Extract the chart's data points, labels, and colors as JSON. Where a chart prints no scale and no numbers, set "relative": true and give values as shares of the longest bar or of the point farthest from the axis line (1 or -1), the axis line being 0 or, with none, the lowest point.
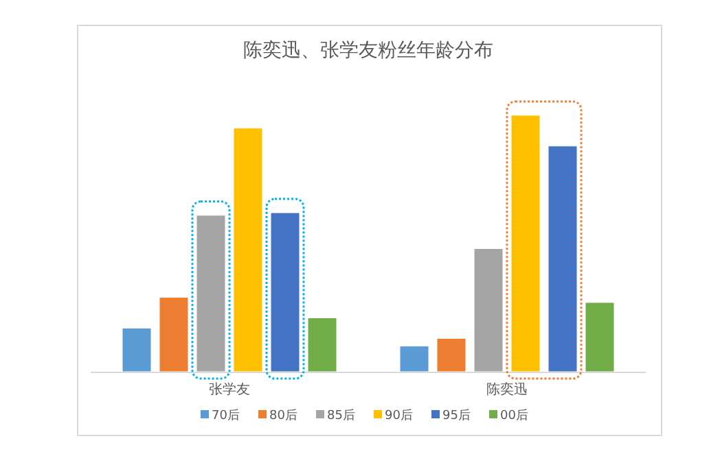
{
  "chart_data": {
    "type": "bar",
    "title": "陈奕迅、张学友粉丝年龄分布",
    "categories": [
      "张学友",
      "陈奕迅"
    ],
    "relative": true,
    "legend": "bottom",
    "series": [
      {
        "name": "70后",
        "color": "#5b9bd5",
        "values": [
          0.17,
          0.1
        ]
      },
      {
        "name": "80后",
        "color": "#ed7d31",
        "values": [
          0.29,
          0.13
        ]
      },
      {
        "name": "85后",
        "color": "#a5a5a5",
        "values": [
          0.61,
          0.48
        ]
      },
      {
        "name": "90后",
        "color": "#ffc000",
        "values": [
          0.95,
          1
        ]
      },
      {
        "name": "95后",
        "color": "#4472c4",
        "values": [
          0.62,
          0.88
        ]
      },
      {
        "name": "00后",
        "color": "#70ad47",
        "values": [
          0.21,
          0.27
        ]
      }
    ]
  }
}
